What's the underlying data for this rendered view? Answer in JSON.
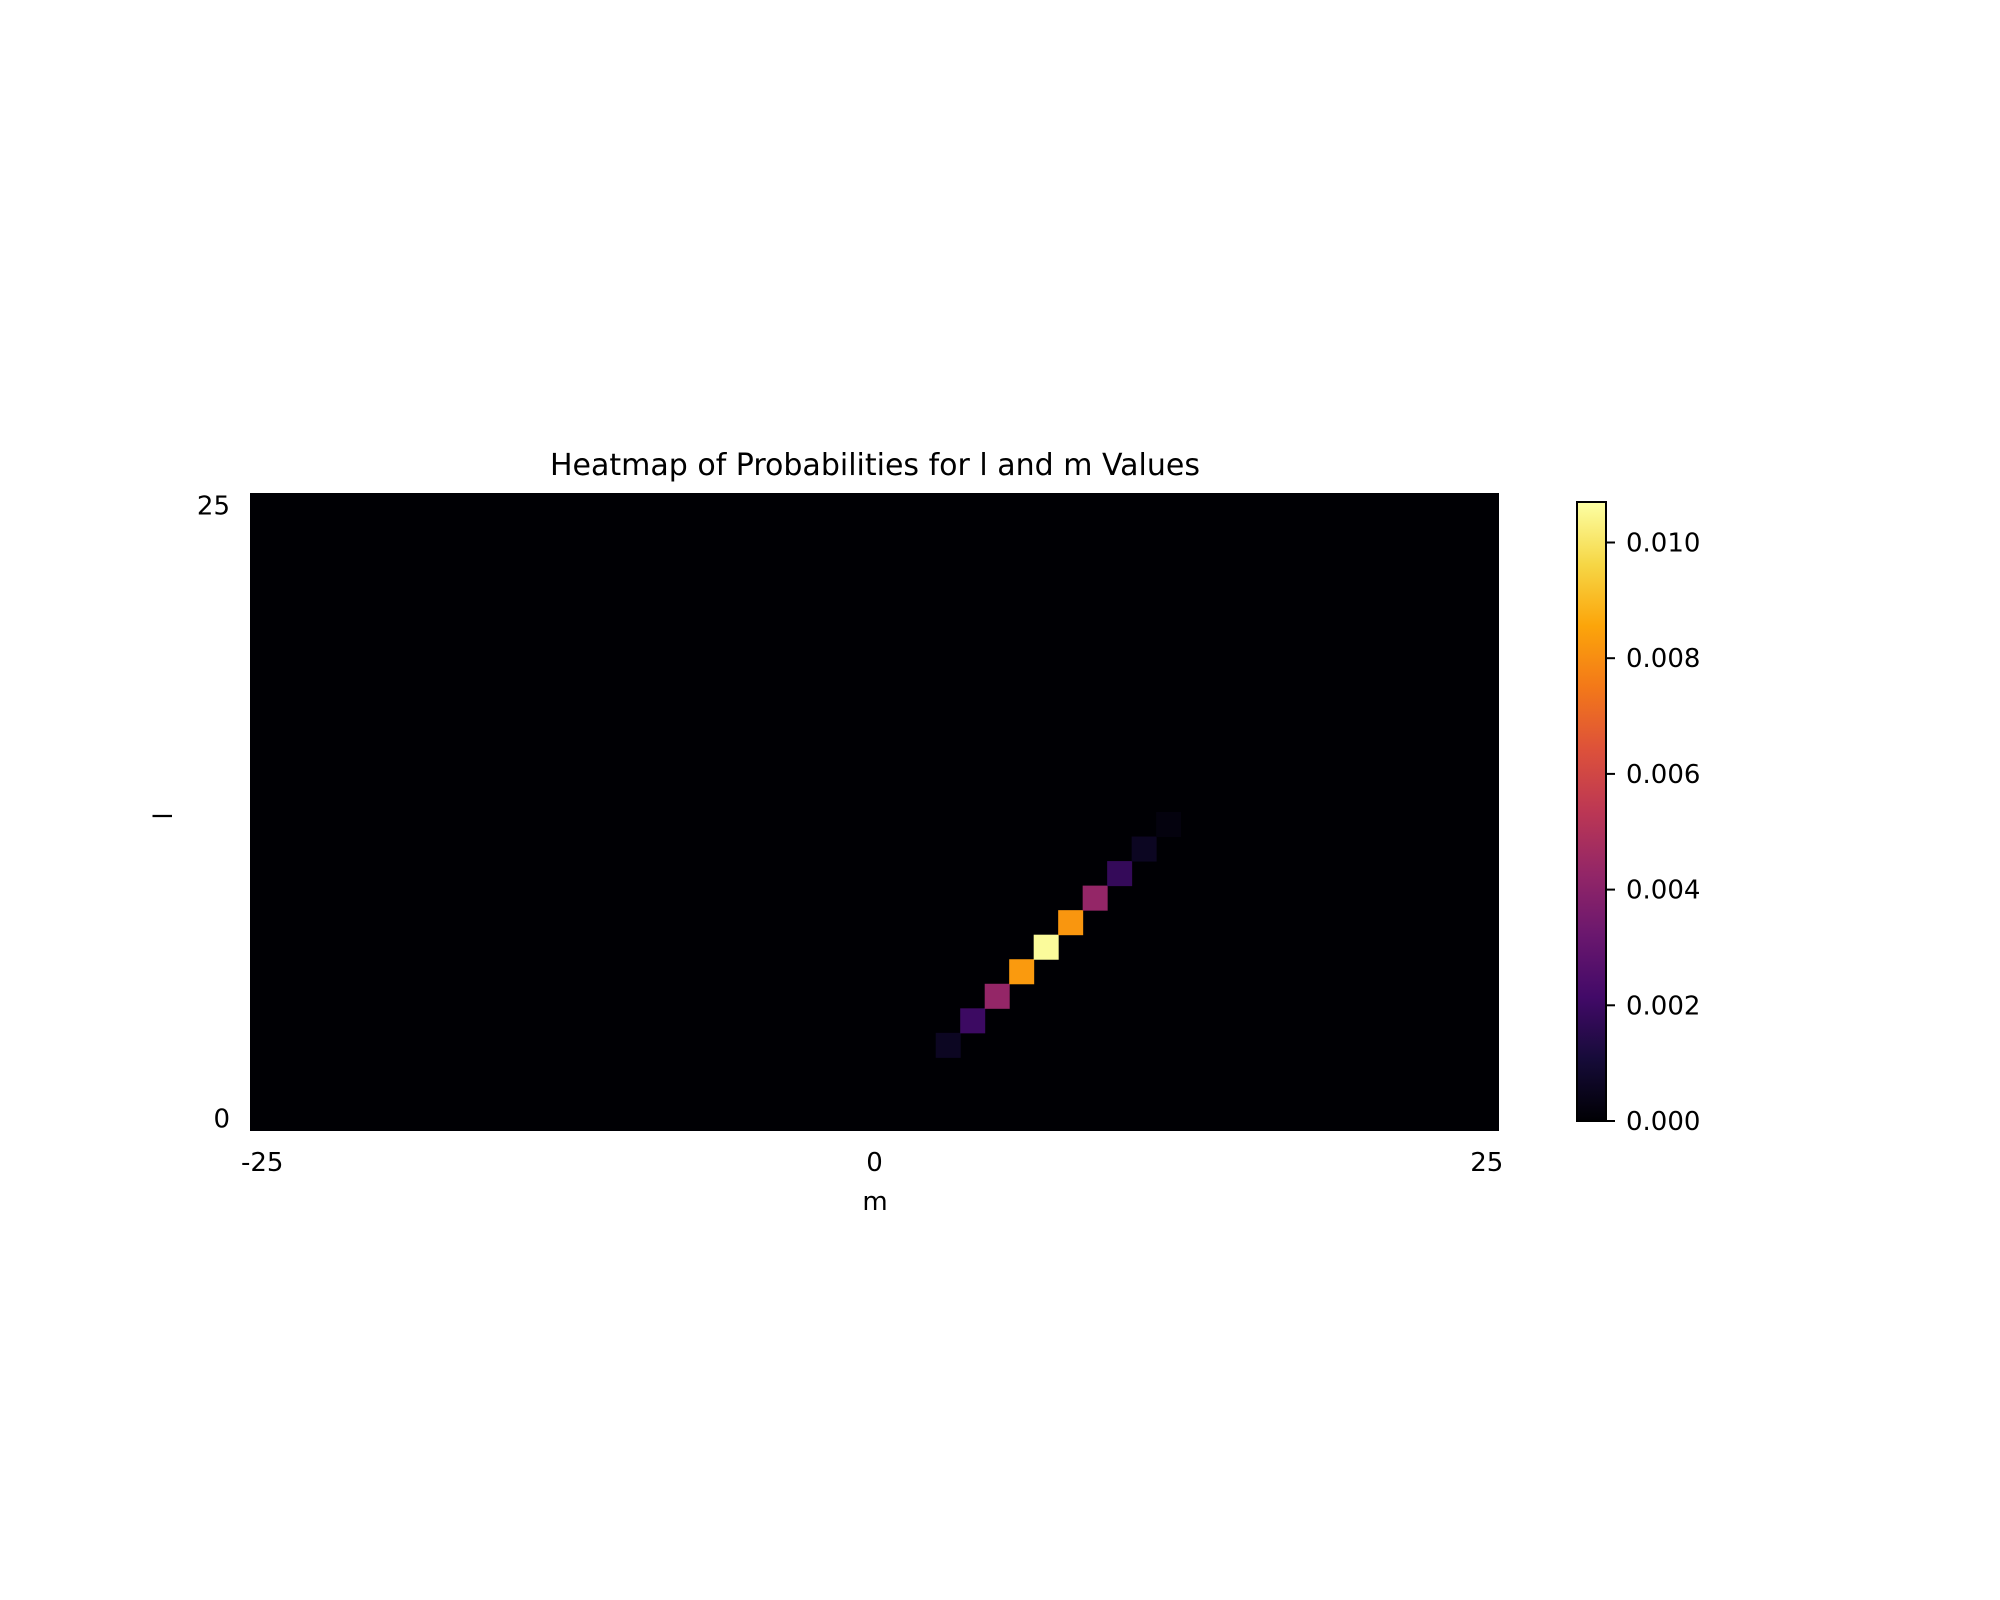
{
  "chart_data": {
    "type": "heatmap",
    "title": "Heatmap of Probabilities for l and m Values",
    "xlabel": "m",
    "ylabel": "l",
    "x_tick_labels": [
      "-25",
      "0",
      "25"
    ],
    "y_tick_labels": [
      "0",
      "25"
    ],
    "xlim": [
      -25,
      25
    ],
    "ylim": [
      0,
      25
    ],
    "colormap": "inferno",
    "colorbar": {
      "min": 0.0,
      "max": 0.0107,
      "tick_labels": [
        "0.000",
        "0.002",
        "0.004",
        "0.006",
        "0.008",
        "0.010"
      ],
      "tick_values": [
        0.0,
        0.002,
        0.004,
        0.006,
        0.008,
        0.01
      ]
    },
    "background_value": 0.0,
    "cells": [
      {
        "m": 3,
        "l": 3,
        "value": 0.0006
      },
      {
        "m": 4,
        "l": 4,
        "value": 0.002
      },
      {
        "m": 5,
        "l": 5,
        "value": 0.0043
      },
      {
        "m": 6,
        "l": 6,
        "value": 0.0083
      },
      {
        "m": 7,
        "l": 7,
        "value": 0.0106
      },
      {
        "m": 8,
        "l": 8,
        "value": 0.0082
      },
      {
        "m": 9,
        "l": 9,
        "value": 0.0043
      },
      {
        "m": 10,
        "l": 10,
        "value": 0.0018
      },
      {
        "m": 11,
        "l": 11,
        "value": 0.0006
      },
      {
        "m": 12,
        "l": 12,
        "value": 0.0002
      }
    ]
  }
}
